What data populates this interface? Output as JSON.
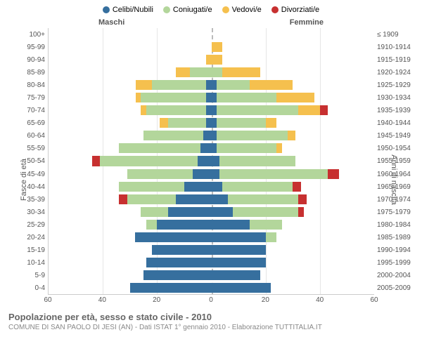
{
  "colors": {
    "celibi": "#366f9e",
    "coniugati": "#b3d69b",
    "vedovi": "#f5c04e",
    "divorziati": "#c73030",
    "grid": "#e6e6e6",
    "centerline": "#bbbbbb",
    "text": "#555555",
    "background": "#ffffff"
  },
  "legend": [
    {
      "label": "Celibi/Nubili",
      "colorKey": "celibi"
    },
    {
      "label": "Coniugati/e",
      "colorKey": "coniugati"
    },
    {
      "label": "Vedovi/e",
      "colorKey": "vedovi"
    },
    {
      "label": "Divorziati/e",
      "colorKey": "divorziati"
    }
  ],
  "genderLabels": {
    "male": "Maschi",
    "female": "Femmine"
  },
  "axisTitles": {
    "left": "Fasce di età",
    "right": "Anni di nascita"
  },
  "xAxis": {
    "max": 60,
    "ticks": [
      60,
      40,
      20,
      0,
      20,
      40,
      60
    ]
  },
  "title": "Popolazione per età, sesso e stato civile - 2010",
  "subtitle": "COMUNE DI SAN PAOLO DI JESI (AN) - Dati ISTAT 1° gennaio 2010 - Elaborazione TUTTITALIA.IT",
  "rows": [
    {
      "age": "100+",
      "birth": "≤ 1909",
      "m": {
        "cel": 0,
        "con": 0,
        "ved": 0,
        "div": 0
      },
      "f": {
        "cel": 0,
        "con": 0,
        "ved": 0,
        "div": 0
      }
    },
    {
      "age": "95-99",
      "birth": "1910-1914",
      "m": {
        "cel": 0,
        "con": 0,
        "ved": 0,
        "div": 0
      },
      "f": {
        "cel": 0,
        "con": 0,
        "ved": 4,
        "div": 0
      }
    },
    {
      "age": "90-94",
      "birth": "1915-1919",
      "m": {
        "cel": 0,
        "con": 0,
        "ved": 2,
        "div": 0
      },
      "f": {
        "cel": 0,
        "con": 0,
        "ved": 4,
        "div": 0
      }
    },
    {
      "age": "85-89",
      "birth": "1920-1924",
      "m": {
        "cel": 0,
        "con": 8,
        "ved": 5,
        "div": 0
      },
      "f": {
        "cel": 0,
        "con": 4,
        "ved": 14,
        "div": 0
      }
    },
    {
      "age": "80-84",
      "birth": "1925-1929",
      "m": {
        "cel": 2,
        "con": 20,
        "ved": 6,
        "div": 0
      },
      "f": {
        "cel": 2,
        "con": 12,
        "ved": 16,
        "div": 0
      }
    },
    {
      "age": "75-79",
      "birth": "1930-1934",
      "m": {
        "cel": 2,
        "con": 24,
        "ved": 2,
        "div": 0
      },
      "f": {
        "cel": 2,
        "con": 22,
        "ved": 14,
        "div": 0
      }
    },
    {
      "age": "70-74",
      "birth": "1935-1939",
      "m": {
        "cel": 2,
        "con": 22,
        "ved": 2,
        "div": 0
      },
      "f": {
        "cel": 2,
        "con": 30,
        "ved": 8,
        "div": 3
      }
    },
    {
      "age": "65-69",
      "birth": "1940-1944",
      "m": {
        "cel": 2,
        "con": 14,
        "ved": 3,
        "div": 0
      },
      "f": {
        "cel": 2,
        "con": 18,
        "ved": 4,
        "div": 0
      }
    },
    {
      "age": "60-64",
      "birth": "1945-1949",
      "m": {
        "cel": 3,
        "con": 22,
        "ved": 0,
        "div": 0
      },
      "f": {
        "cel": 2,
        "con": 26,
        "ved": 3,
        "div": 0
      }
    },
    {
      "age": "55-59",
      "birth": "1950-1954",
      "m": {
        "cel": 4,
        "con": 30,
        "ved": 0,
        "div": 0
      },
      "f": {
        "cel": 2,
        "con": 22,
        "ved": 2,
        "div": 0
      }
    },
    {
      "age": "50-54",
      "birth": "1955-1959",
      "m": {
        "cel": 5,
        "con": 36,
        "ved": 0,
        "div": 3
      },
      "f": {
        "cel": 3,
        "con": 28,
        "ved": 0,
        "div": 0
      }
    },
    {
      "age": "45-49",
      "birth": "1960-1964",
      "m": {
        "cel": 7,
        "con": 24,
        "ved": 0,
        "div": 0
      },
      "f": {
        "cel": 3,
        "con": 40,
        "ved": 0,
        "div": 4
      }
    },
    {
      "age": "40-44",
      "birth": "1965-1969",
      "m": {
        "cel": 10,
        "con": 24,
        "ved": 0,
        "div": 0
      },
      "f": {
        "cel": 4,
        "con": 26,
        "ved": 0,
        "div": 3
      }
    },
    {
      "age": "35-39",
      "birth": "1970-1974",
      "m": {
        "cel": 13,
        "con": 18,
        "ved": 0,
        "div": 3
      },
      "f": {
        "cel": 6,
        "con": 26,
        "ved": 0,
        "div": 3
      }
    },
    {
      "age": "30-34",
      "birth": "1975-1979",
      "m": {
        "cel": 16,
        "con": 10,
        "ved": 0,
        "div": 0
      },
      "f": {
        "cel": 8,
        "con": 24,
        "ved": 0,
        "div": 2
      }
    },
    {
      "age": "25-29",
      "birth": "1980-1984",
      "m": {
        "cel": 20,
        "con": 4,
        "ved": 0,
        "div": 0
      },
      "f": {
        "cel": 14,
        "con": 12,
        "ved": 0,
        "div": 0
      }
    },
    {
      "age": "20-24",
      "birth": "1985-1989",
      "m": {
        "cel": 28,
        "con": 0,
        "ved": 0,
        "div": 0
      },
      "f": {
        "cel": 20,
        "con": 4,
        "ved": 0,
        "div": 0
      }
    },
    {
      "age": "15-19",
      "birth": "1990-1994",
      "m": {
        "cel": 22,
        "con": 0,
        "ved": 0,
        "div": 0
      },
      "f": {
        "cel": 20,
        "con": 0,
        "ved": 0,
        "div": 0
      }
    },
    {
      "age": "10-14",
      "birth": "1995-1999",
      "m": {
        "cel": 24,
        "con": 0,
        "ved": 0,
        "div": 0
      },
      "f": {
        "cel": 20,
        "con": 0,
        "ved": 0,
        "div": 0
      }
    },
    {
      "age": "5-9",
      "birth": "2000-2004",
      "m": {
        "cel": 25,
        "con": 0,
        "ved": 0,
        "div": 0
      },
      "f": {
        "cel": 18,
        "con": 0,
        "ved": 0,
        "div": 0
      }
    },
    {
      "age": "0-4",
      "birth": "2005-2009",
      "m": {
        "cel": 30,
        "con": 0,
        "ved": 0,
        "div": 0
      },
      "f": {
        "cel": 22,
        "con": 0,
        "ved": 0,
        "div": 0
      }
    }
  ]
}
